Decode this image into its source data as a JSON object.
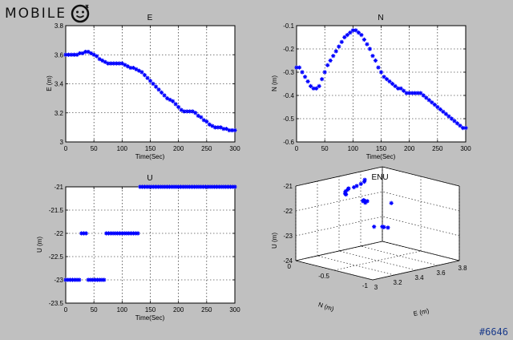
{
  "watermark": {
    "logo_text": "MOBILE",
    "tag": "#6646"
  },
  "chart_data": [
    {
      "type": "scatter",
      "title": "E",
      "xlabel": "Time(Sec)",
      "ylabel": "E (m)",
      "xlim": [
        0,
        300
      ],
      "ylim": [
        3,
        3.8
      ],
      "xticks": [
        0,
        50,
        100,
        150,
        200,
        250,
        300
      ],
      "yticks": [
        3,
        3.2,
        3.4,
        3.6,
        3.8
      ],
      "grid": true,
      "marker_color": "#0000ff",
      "series": [
        {
          "x": [
            0,
            5,
            10,
            15,
            20,
            25,
            30,
            35,
            40,
            45,
            50,
            55,
            60,
            65,
            70,
            75,
            80,
            85,
            90,
            95,
            100,
            105,
            110,
            115,
            120,
            125,
            130,
            135,
            140,
            145,
            150,
            155,
            160,
            165,
            170,
            175,
            180,
            185,
            190,
            195,
            200,
            205,
            210,
            215,
            220,
            225,
            230,
            235,
            240,
            245,
            250,
            255,
            260,
            265,
            270,
            275,
            280,
            285,
            290,
            295,
            300
          ],
          "y": [
            3.6,
            3.6,
            3.6,
            3.6,
            3.6,
            3.61,
            3.61,
            3.62,
            3.62,
            3.61,
            3.6,
            3.59,
            3.57,
            3.56,
            3.55,
            3.54,
            3.54,
            3.54,
            3.54,
            3.54,
            3.54,
            3.53,
            3.52,
            3.51,
            3.51,
            3.5,
            3.49,
            3.48,
            3.46,
            3.44,
            3.42,
            3.4,
            3.38,
            3.36,
            3.34,
            3.32,
            3.3,
            3.29,
            3.28,
            3.26,
            3.24,
            3.22,
            3.21,
            3.21,
            3.21,
            3.21,
            3.2,
            3.18,
            3.17,
            3.15,
            3.14,
            3.12,
            3.11,
            3.1,
            3.1,
            3.1,
            3.09,
            3.09,
            3.08,
            3.08,
            3.08
          ]
        }
      ]
    },
    {
      "type": "scatter",
      "title": "N",
      "xlabel": "Time(Sec)",
      "ylabel": "N (m)",
      "xlim": [
        0,
        300
      ],
      "ylim": [
        -0.6,
        -0.1
      ],
      "xticks": [
        0,
        50,
        100,
        150,
        200,
        250,
        300
      ],
      "yticks": [
        -0.6,
        -0.5,
        -0.4,
        -0.3,
        -0.2,
        -0.1
      ],
      "grid": true,
      "marker_color": "#0000ff",
      "series": [
        {
          "x": [
            0,
            5,
            10,
            15,
            20,
            25,
            30,
            35,
            40,
            45,
            50,
            55,
            60,
            65,
            70,
            75,
            80,
            85,
            90,
            95,
            100,
            105,
            110,
            115,
            120,
            125,
            130,
            135,
            140,
            145,
            150,
            155,
            160,
            165,
            170,
            175,
            180,
            185,
            190,
            195,
            200,
            205,
            210,
            215,
            220,
            225,
            230,
            235,
            240,
            245,
            250,
            255,
            260,
            265,
            270,
            275,
            280,
            285,
            290,
            295,
            300
          ],
          "y": [
            -0.28,
            -0.28,
            -0.3,
            -0.32,
            -0.34,
            -0.36,
            -0.37,
            -0.37,
            -0.36,
            -0.33,
            -0.3,
            -0.27,
            -0.25,
            -0.23,
            -0.21,
            -0.19,
            -0.17,
            -0.15,
            -0.14,
            -0.13,
            -0.12,
            -0.12,
            -0.13,
            -0.14,
            -0.16,
            -0.18,
            -0.2,
            -0.23,
            -0.25,
            -0.28,
            -0.3,
            -0.32,
            -0.33,
            -0.34,
            -0.35,
            -0.36,
            -0.37,
            -0.37,
            -0.38,
            -0.39,
            -0.39,
            -0.39,
            -0.39,
            -0.39,
            -0.39,
            -0.4,
            -0.41,
            -0.42,
            -0.43,
            -0.44,
            -0.45,
            -0.46,
            -0.47,
            -0.48,
            -0.49,
            -0.5,
            -0.51,
            -0.52,
            -0.53,
            -0.54,
            -0.54
          ]
        }
      ]
    },
    {
      "type": "scatter",
      "title": "U",
      "xlabel": "Time(Sec)",
      "ylabel": "U (m)",
      "xlim": [
        0,
        300
      ],
      "ylim": [
        -23.5,
        -21
      ],
      "xticks": [
        0,
        50,
        100,
        150,
        200,
        250,
        300
      ],
      "yticks": [
        -23.5,
        -23,
        -22.5,
        -22,
        -21.5,
        -21
      ],
      "grid": true,
      "marker_color": "#0000ff",
      "series": [
        {
          "x": [
            0,
            4,
            8,
            12,
            16,
            20,
            24,
            28,
            32,
            36,
            40,
            44,
            48,
            52,
            56,
            60,
            64,
            68,
            72,
            76,
            80,
            84,
            88,
            92,
            96,
            100,
            104,
            108,
            112,
            116,
            120,
            124,
            128,
            132,
            136,
            140,
            144,
            148,
            152,
            156,
            160,
            164,
            168,
            172,
            176,
            180,
            184,
            188,
            192,
            196,
            200,
            204,
            208,
            212,
            216,
            220,
            224,
            228,
            232,
            236,
            240,
            244,
            248,
            252,
            256,
            260,
            264,
            268,
            272,
            276,
            280,
            284,
            288,
            292,
            296,
            300
          ],
          "y": [
            -23,
            -23,
            -23,
            -23,
            -23,
            -23,
            -23,
            -22,
            -22,
            -22,
            -23,
            -23,
            -23,
            -23,
            -23,
            -23,
            -23,
            -23,
            -22,
            -22,
            -22,
            -22,
            -22,
            -22,
            -22,
            -22,
            -22,
            -22,
            -22,
            -22,
            -22,
            -22,
            -22,
            -21,
            -21,
            -21,
            -21,
            -21,
            -21,
            -21,
            -21,
            -21,
            -21,
            -21,
            -21,
            -21,
            -21,
            -21,
            -21,
            -21,
            -21,
            -21,
            -21,
            -21,
            -21,
            -21,
            -21,
            -21,
            -21,
            -21,
            -21,
            -21,
            -21,
            -21,
            -21,
            -21,
            -21,
            -21,
            -21,
            -21,
            -21,
            -21,
            -21,
            -21,
            -21,
            -21
          ]
        }
      ]
    },
    {
      "type": "scatter3d",
      "title": "ENU",
      "xlabel": "E (m)",
      "ylabel": "N (m)",
      "zlabel": "U (m)",
      "xlim": [
        3,
        3.8
      ],
      "ylim": [
        -1,
        0
      ],
      "zlim": [
        -24,
        -21
      ],
      "xticks": [
        3,
        3.2,
        3.4,
        3.6,
        3.8
      ],
      "yticks": [
        -1,
        -0.5,
        0
      ],
      "zticks": [
        -24,
        -23,
        -22,
        -21
      ],
      "grid": true,
      "marker_color": "#0000ff",
      "series": [
        {
          "x": [
            3.6,
            3.6,
            3.61,
            3.62,
            3.6,
            3.56,
            3.54,
            3.54,
            3.54,
            3.52,
            3.5,
            3.46,
            3.42,
            3.36,
            3.3,
            3.26,
            3.21,
            3.21,
            3.18,
            3.14,
            3.1,
            3.09,
            3.08
          ],
          "y": [
            -0.28,
            -0.3,
            -0.34,
            -0.37,
            -0.3,
            -0.23,
            -0.17,
            -0.13,
            -0.12,
            -0.14,
            -0.2,
            -0.25,
            -0.3,
            -0.34,
            -0.37,
            -0.39,
            -0.39,
            -0.39,
            -0.42,
            -0.45,
            -0.5,
            -0.52,
            -0.54
          ],
          "z": [
            -23,
            -23,
            -23,
            -22,
            -23,
            -23,
            -22,
            -22,
            -22,
            -22,
            -22,
            -21,
            -21,
            -21,
            -21,
            -21,
            -21,
            -21,
            -21,
            -21,
            -21,
            -21,
            -21
          ]
        }
      ]
    }
  ]
}
